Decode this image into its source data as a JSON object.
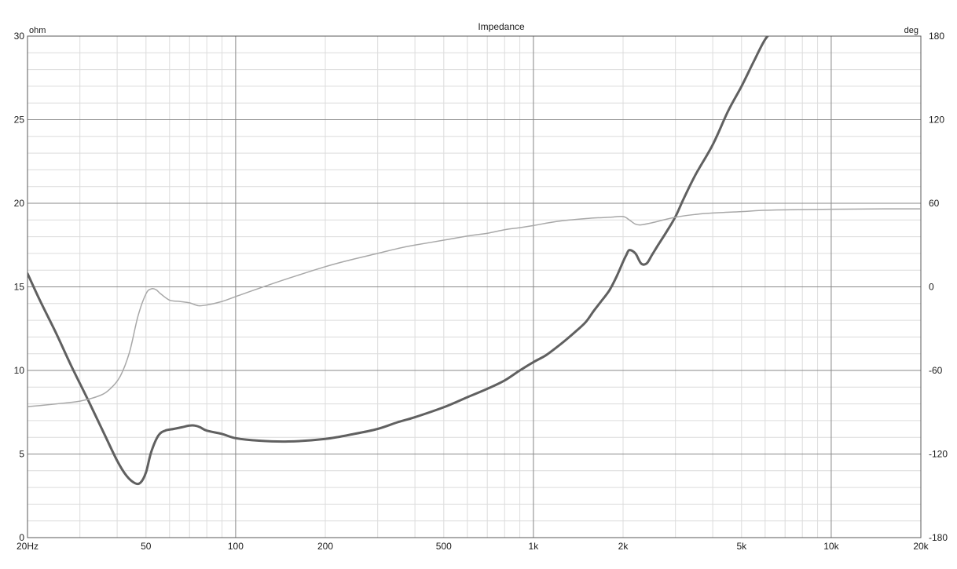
{
  "chart_data": {
    "type": "line",
    "title": "Impedance",
    "xscale": "log",
    "xlim": [
      20,
      20000
    ],
    "x_ticks": [
      {
        "value": 20,
        "label": "20Hz"
      },
      {
        "value": 50,
        "label": "50"
      },
      {
        "value": 100,
        "label": "100"
      },
      {
        "value": 200,
        "label": "200"
      },
      {
        "value": 500,
        "label": "500"
      },
      {
        "value": 1000,
        "label": "1k"
      },
      {
        "value": 2000,
        "label": "2k"
      },
      {
        "value": 5000,
        "label": "5k"
      },
      {
        "value": 10000,
        "label": "10k"
      },
      {
        "value": 20000,
        "label": "20k"
      }
    ],
    "y_left": {
      "unit": "ohm",
      "lim": [
        0,
        30
      ],
      "ticks": [
        "0",
        "5",
        "10",
        "15",
        "20",
        "25",
        "30"
      ]
    },
    "y_right": {
      "unit": "deg",
      "lim": [
        -180,
        180
      ],
      "ticks": [
        "-180",
        "-120",
        "-60",
        "0",
        "60",
        "120",
        "180"
      ]
    },
    "grid": true,
    "series": [
      {
        "axis": "left",
        "color": "#606060",
        "x": [
          20,
          22,
          25,
          28,
          32,
          36,
          40,
          43,
          46,
          48,
          50,
          52,
          55,
          58,
          62,
          66,
          70,
          73,
          76,
          80,
          90,
          100,
          120,
          150,
          200,
          250,
          300,
          350,
          400,
          500,
          600,
          700,
          800,
          900,
          1000,
          1100,
          1200,
          1300,
          1400,
          1500,
          1600,
          1700,
          1800,
          1900,
          2000,
          2050,
          2100,
          2200,
          2300,
          2400,
          2500,
          2600,
          2800,
          3000,
          3200,
          3500,
          4000,
          4500,
          5000,
          5500,
          6000,
          6500
        ],
        "y": [
          15.8,
          14.2,
          12.2,
          10.3,
          8.2,
          6.3,
          4.6,
          3.7,
          3.25,
          3.3,
          3.9,
          5.1,
          6.1,
          6.4,
          6.5,
          6.6,
          6.7,
          6.7,
          6.6,
          6.4,
          6.2,
          5.95,
          5.8,
          5.75,
          5.9,
          6.2,
          6.5,
          6.9,
          7.2,
          7.8,
          8.4,
          8.9,
          9.4,
          10.0,
          10.5,
          10.9,
          11.4,
          11.9,
          12.4,
          12.9,
          13.6,
          14.2,
          14.8,
          15.6,
          16.5,
          16.9,
          17.2,
          17.0,
          16.4,
          16.4,
          16.9,
          17.4,
          18.3,
          19.2,
          20.3,
          21.7,
          23.5,
          25.5,
          27.0,
          28.5,
          29.8,
          30.5
        ]
      },
      {
        "axis": "right",
        "color": "#a8a8a8",
        "x": [
          20,
          25,
          30,
          35,
          38,
          41,
          44,
          47,
          50,
          52,
          54,
          56,
          60,
          65,
          70,
          75,
          80,
          90,
          100,
          120,
          150,
          200,
          250,
          300,
          350,
          400,
          500,
          600,
          700,
          800,
          900,
          1000,
          1200,
          1500,
          1800,
          2000,
          2100,
          2200,
          2300,
          2500,
          3000,
          3500,
          4000,
          5000,
          6000,
          8000,
          10000,
          15000,
          20000
        ],
        "y": [
          -86,
          -84,
          -82,
          -78,
          -73,
          -64,
          -47,
          -21,
          -5,
          -1.5,
          -2,
          -5,
          -9.5,
          -10.5,
          -11.5,
          -13.5,
          -13,
          -10.5,
          -7,
          -1,
          6,
          14.5,
          20,
          24,
          27.5,
          30,
          33.5,
          36.5,
          38.5,
          41,
          42.5,
          44,
          47,
          49,
          50,
          50.5,
          48,
          45,
          44.5,
          46,
          50,
          52,
          53,
          54,
          55,
          55.5,
          55.7,
          56,
          56
        ]
      }
    ]
  }
}
